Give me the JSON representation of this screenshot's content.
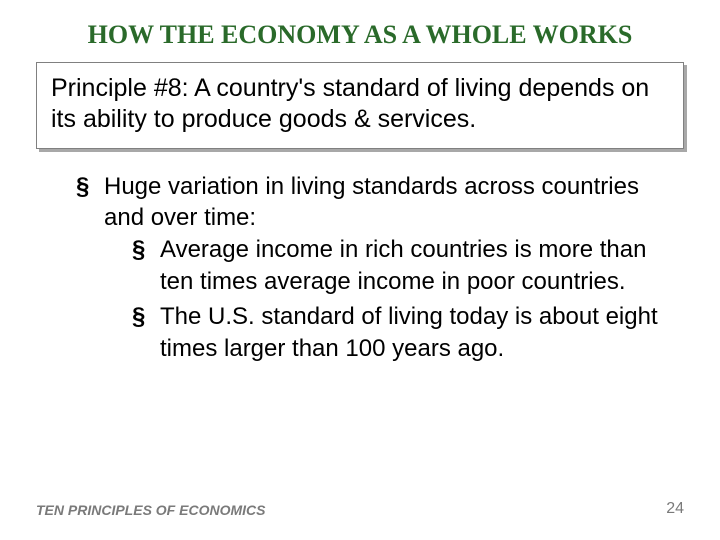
{
  "title": "HOW THE ECONOMY AS A WHOLE WORKS",
  "principle": "Principle #8:  A country's standard of living depends on its ability to produce goods & services.",
  "bullets": {
    "b1": "Huge variation in living standards across countries and over time:",
    "b2a": "Average income in rich countries is more than ten times average income in poor countries.",
    "b2b": "The U.S. standard of living today is about eight times larger than 100 years ago."
  },
  "footer": {
    "left": "TEN PRINCIPLES OF ECONOMICS",
    "page": "24"
  },
  "colors": {
    "title_color": "#2a6a2a",
    "text_color": "#000000",
    "footer_color": "#7a7a7a",
    "box_border": "#808080",
    "box_shadow": "#a8a8a8",
    "background": "#ffffff"
  },
  "typography": {
    "title_font": "Times New Roman",
    "body_font": "Arial",
    "title_size_pt": 26,
    "principle_size_pt": 25,
    "bullet_size_pt": 24,
    "footer_size_pt": 14
  }
}
